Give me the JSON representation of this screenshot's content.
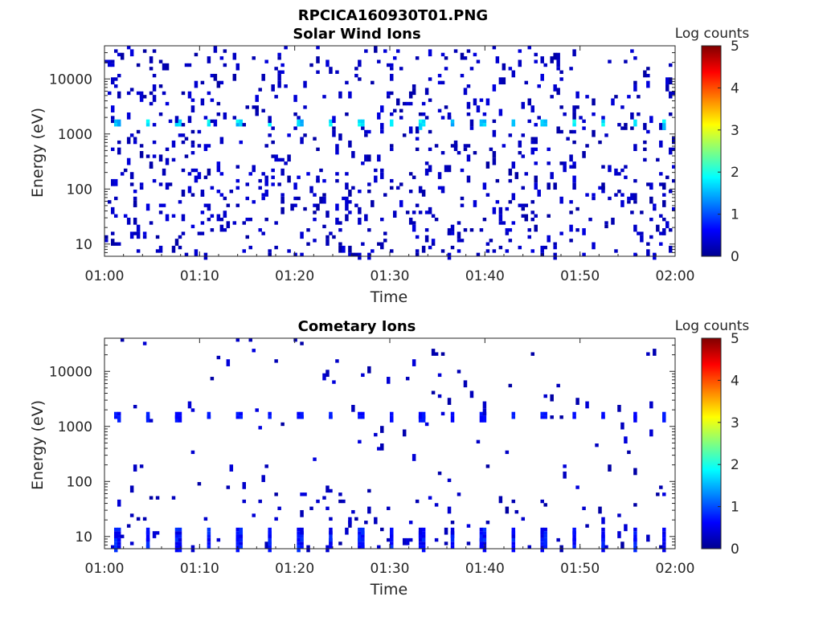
{
  "figure": {
    "title": "RPCICA160930T01.PNG"
  },
  "colormap": {
    "name": "jet",
    "stops": [
      "#00008f",
      "#0000ff",
      "#0080ff",
      "#00ffff",
      "#80ff80",
      "#ffff00",
      "#ff8000",
      "#ff0000",
      "#800000"
    ]
  },
  "chart_data": [
    {
      "type": "heatmap",
      "title": "Solar Wind Ions",
      "xlabel": "Time",
      "ylabel": "Energy (eV)",
      "x_ticks": [
        "01:00",
        "01:10",
        "01:20",
        "01:30",
        "01:40",
        "01:50",
        "02:00"
      ],
      "x_range_minutes": [
        0,
        60
      ],
      "y_scale": "log",
      "y_ticks": [
        10,
        100,
        1000,
        10000
      ],
      "y_tick_labels": [
        "10",
        "100",
        "1000",
        "10000"
      ],
      "y_range": [
        6,
        40000
      ],
      "colorbar": {
        "label": "Log counts",
        "range": [
          0,
          5
        ],
        "ticks": [
          "0",
          "1",
          "2",
          "3",
          "4",
          "5"
        ]
      },
      "features": {
        "repeating_peak_energy_eV": 1500,
        "peak_log_counts": 2.0,
        "peak_interval_minutes": 3.2,
        "first_peak_minute": 1.2,
        "background_log_counts": 0.1,
        "background_density": "high"
      }
    },
    {
      "type": "heatmap",
      "title": "Cometary Ions",
      "xlabel": "Time",
      "ylabel": "Energy (eV)",
      "x_ticks": [
        "01:00",
        "01:10",
        "01:20",
        "01:30",
        "01:40",
        "01:50",
        "02:00"
      ],
      "x_range_minutes": [
        0,
        60
      ],
      "y_scale": "log",
      "y_ticks": [
        10,
        100,
        1000,
        10000
      ],
      "y_tick_labels": [
        "10",
        "100",
        "1000",
        "10000"
      ],
      "y_range": [
        6,
        40000
      ],
      "colorbar": {
        "label": "Log counts",
        "range": [
          0,
          5
        ],
        "ticks": [
          "0",
          "1",
          "2",
          "3",
          "4",
          "5"
        ]
      },
      "features": {
        "repeating_peak_energy_eV": 1500,
        "peak_log_counts": 0.8,
        "low_energy_bursts_below_eV": 15,
        "burst_log_counts": 0.9,
        "peak_interval_minutes": 3.2,
        "first_peak_minute": 1.2,
        "background_log_counts": 0.1,
        "background_density": "sparse"
      }
    }
  ]
}
